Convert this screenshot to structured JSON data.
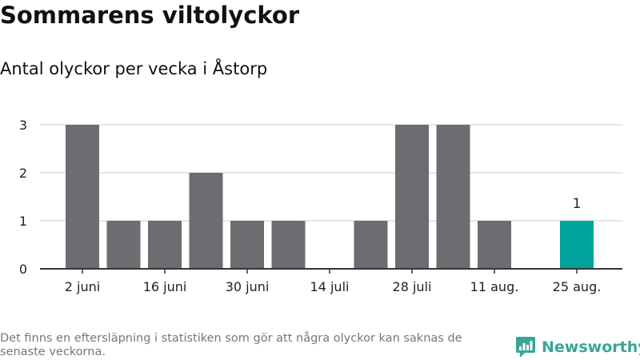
{
  "title": "Sommarens viltolyckor",
  "subtitle": "Antal olyckor per vecka i Åstorp",
  "footnote": "Det finns en eftersläpning i statistiken som gör att några olyckor kan saknas de senaste veckorna.",
  "brand": {
    "name": "Newsworthy",
    "icon": "newsworthy-logo-icon",
    "color": "#3aa598"
  },
  "colors": {
    "bar": "#6d6c71",
    "highlight": "#00a49a",
    "grid": "#dddddd",
    "axis": "#333333"
  },
  "chart_data": {
    "type": "bar",
    "weeks": 13,
    "values": [
      3,
      1,
      1,
      2,
      1,
      1,
      0,
      1,
      3,
      3,
      1,
      0,
      1
    ],
    "highlight_index": 12,
    "highlight_label": "1",
    "x_ticks": [
      {
        "index": 0,
        "label": "2 juni"
      },
      {
        "index": 2,
        "label": "16 juni"
      },
      {
        "index": 4,
        "label": "30 juni"
      },
      {
        "index": 6,
        "label": "14 juli"
      },
      {
        "index": 8,
        "label": "28 juli"
      },
      {
        "index": 10,
        "label": "11 aug."
      },
      {
        "index": 12,
        "label": "25 aug."
      }
    ],
    "y_ticks": [
      "0",
      "1",
      "2",
      "3"
    ],
    "ylim": [
      0,
      3
    ],
    "grid": true,
    "legend": "none"
  }
}
